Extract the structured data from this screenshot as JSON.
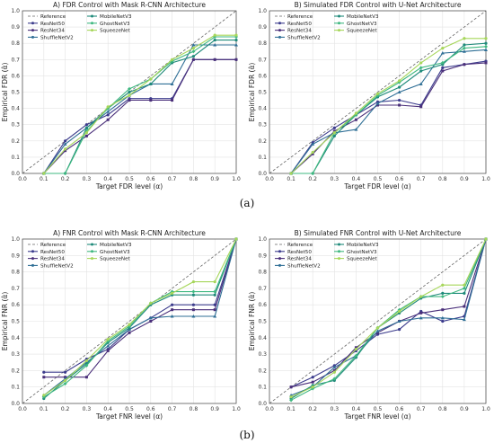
{
  "captions": [
    "(a)",
    "(b)"
  ],
  "colors": {
    "ResNet50": "#3b3b8c",
    "ResNet34": "#4a2f7a",
    "ShuffleNetV2": "#2f6f96",
    "MobileNetV3": "#1f8a7a",
    "GhostNetV3": "#3fb880",
    "SqueezeNet": "#a6d65a",
    "Reference": "#666666"
  },
  "chart_data": [
    {
      "type": "line",
      "title": "A) FDR Control with Mask R-CNN Architecture",
      "xlabel": "Target FDR level (α)",
      "ylabel": "Empirical FDR (α̂)",
      "xlim": [
        0,
        1
      ],
      "ylim": [
        0,
        1
      ],
      "ticks": [
        "0.0",
        "0.1",
        "0.2",
        "0.3",
        "0.4",
        "0.5",
        "0.6",
        "0.7",
        "0.8",
        "0.9",
        "1.0"
      ],
      "legend": [
        "Reference",
        "ResNet50",
        "ResNet34",
        "ShuffleNetV2",
        "MobileNetV3",
        "GhostNetV3",
        "SqueezeNet"
      ],
      "x": [
        0.1,
        0.2,
        0.3,
        0.4,
        0.5,
        0.6,
        0.7,
        0.8,
        0.9,
        1.0
      ],
      "series": [
        {
          "name": "ResNet50",
          "values": [
            0.0,
            0.2,
            0.3,
            0.36,
            0.46,
            0.46,
            0.46,
            0.7,
            0.7,
            0.7
          ]
        },
        {
          "name": "ResNet34",
          "values": [
            0.0,
            0.14,
            0.23,
            0.33,
            0.45,
            0.45,
            0.45,
            0.7,
            0.7,
            0.7
          ]
        },
        {
          "name": "ShuffleNetV2",
          "values": [
            0.0,
            0.18,
            0.28,
            0.38,
            0.48,
            0.55,
            0.55,
            0.79,
            0.79,
            0.79
          ]
        },
        {
          "name": "MobileNetV3",
          "values": [
            0.0,
            0.0,
            0.28,
            0.4,
            0.5,
            0.55,
            0.68,
            0.72,
            0.82,
            0.82
          ]
        },
        {
          "name": "GhostNetV3",
          "values": [
            0.0,
            0.0,
            0.26,
            0.4,
            0.52,
            0.58,
            0.69,
            0.75,
            0.84,
            0.84
          ]
        },
        {
          "name": "SqueezeNet",
          "values": [
            0.0,
            0.15,
            0.25,
            0.41,
            0.48,
            0.58,
            0.7,
            0.77,
            0.85,
            0.85
          ]
        }
      ]
    },
    {
      "type": "line",
      "title": "B) Simulated FDR Control with U-Net Architecture",
      "xlabel": "Target FDR level (α)",
      "ylabel": "Empirical FDR (α̂)",
      "xlim": [
        0,
        1
      ],
      "ylim": [
        0,
        1
      ],
      "ticks": [
        "0.0",
        "0.1",
        "0.2",
        "0.3",
        "0.4",
        "0.5",
        "0.6",
        "0.7",
        "0.8",
        "0.9",
        "1.0"
      ],
      "legend": [
        "Reference",
        "ResNet50",
        "ResNet34",
        "ShuffleNetV2",
        "MobileNetV3",
        "GhostNetV3",
        "SqueezeNet"
      ],
      "x": [
        0.1,
        0.2,
        0.3,
        0.4,
        0.5,
        0.6,
        0.7,
        0.8,
        0.9,
        1.0
      ],
      "series": [
        {
          "name": "ResNet50",
          "values": [
            0.0,
            0.19,
            0.28,
            0.36,
            0.44,
            0.45,
            0.42,
            0.65,
            0.67,
            0.69
          ]
        },
        {
          "name": "ResNet34",
          "values": [
            0.0,
            0.12,
            0.26,
            0.33,
            0.42,
            0.42,
            0.41,
            0.63,
            0.67,
            0.68
          ]
        },
        {
          "name": "ShuffleNetV2",
          "values": [
            0.0,
            0.18,
            0.25,
            0.27,
            0.43,
            0.5,
            0.55,
            0.74,
            0.75,
            0.76
          ]
        },
        {
          "name": "MobileNetV3",
          "values": [
            0.0,
            0.0,
            0.23,
            0.36,
            0.47,
            0.53,
            0.63,
            0.67,
            0.79,
            0.8
          ]
        },
        {
          "name": "GhostNetV3",
          "values": [
            0.0,
            0.0,
            0.25,
            0.36,
            0.48,
            0.56,
            0.65,
            0.68,
            0.77,
            0.78
          ]
        },
        {
          "name": "SqueezeNet",
          "values": [
            0.0,
            0.13,
            0.25,
            0.37,
            0.49,
            0.57,
            0.68,
            0.77,
            0.83,
            0.83
          ]
        }
      ]
    },
    {
      "type": "line",
      "title": "A) FNR Control with Mask R-CNN Architecture",
      "xlabel": "Target FNR level (α)",
      "ylabel": "Empirical FNR (α̂)",
      "xlim": [
        0,
        1
      ],
      "ylim": [
        0,
        1
      ],
      "ticks": [
        "0.0",
        "0.1",
        "0.2",
        "0.3",
        "0.4",
        "0.5",
        "0.6",
        "0.7",
        "0.8",
        "0.9",
        "1.0"
      ],
      "legend": [
        "Reference",
        "ResNet50",
        "ResNet34",
        "ShuffleNetV2",
        "MobileNetV3",
        "GhostNetV3",
        "SqueezeNet"
      ],
      "x": [
        0.1,
        0.2,
        0.3,
        0.4,
        0.5,
        0.6,
        0.7,
        0.8,
        0.9,
        1.0
      ],
      "series": [
        {
          "name": "ResNet50",
          "values": [
            0.19,
            0.19,
            0.27,
            0.33,
            0.45,
            0.52,
            0.6,
            0.6,
            0.6,
            1.0
          ]
        },
        {
          "name": "ResNet34",
          "values": [
            0.16,
            0.16,
            0.16,
            0.32,
            0.43,
            0.5,
            0.57,
            0.57,
            0.57,
            1.0
          ]
        },
        {
          "name": "ShuffleNetV2",
          "values": [
            0.05,
            0.15,
            0.25,
            0.35,
            0.45,
            0.52,
            0.53,
            0.53,
            0.53,
            1.0
          ]
        },
        {
          "name": "MobileNetV3",
          "values": [
            0.03,
            0.14,
            0.24,
            0.37,
            0.46,
            0.6,
            0.66,
            0.66,
            0.66,
            1.0
          ]
        },
        {
          "name": "GhostNetV3",
          "values": [
            0.04,
            0.12,
            0.23,
            0.38,
            0.47,
            0.61,
            0.68,
            0.68,
            0.68,
            1.0
          ]
        },
        {
          "name": "SqueezeNet",
          "values": [
            0.05,
            0.14,
            0.26,
            0.39,
            0.48,
            0.61,
            0.67,
            0.74,
            0.74,
            1.0
          ]
        }
      ]
    },
    {
      "type": "line",
      "title": "B) Simulated FNR Control with U-Net Architecture",
      "xlabel": "Target FNR level (α)",
      "ylabel": "Empirical FNR (α̂)",
      "xlim": [
        0,
        1
      ],
      "ylim": [
        0,
        1
      ],
      "ticks": [
        "0.0",
        "0.1",
        "0.2",
        "0.3",
        "0.4",
        "0.5",
        "0.6",
        "0.7",
        "0.8",
        "0.9",
        "1.0"
      ],
      "legend": [
        "Reference",
        "ResNet50",
        "ResNet34",
        "ShuffleNetV2",
        "MobileNetV3",
        "GhostNetV3",
        "SqueezeNet"
      ],
      "x": [
        0.1,
        0.2,
        0.3,
        0.4,
        0.5,
        0.6,
        0.7,
        0.8,
        0.9,
        1.0
      ],
      "series": [
        {
          "name": "ResNet50",
          "values": [
            0.1,
            0.16,
            0.23,
            0.32,
            0.42,
            0.45,
            0.56,
            0.5,
            0.53,
            1.0
          ]
        },
        {
          "name": "ResNet34",
          "values": [
            0.1,
            0.13,
            0.2,
            0.34,
            0.43,
            0.5,
            0.55,
            0.57,
            0.59,
            1.0
          ]
        },
        {
          "name": "ShuffleNetV2",
          "values": [
            0.05,
            0.1,
            0.22,
            0.29,
            0.44,
            0.5,
            0.52,
            0.52,
            0.51,
            1.0
          ]
        },
        {
          "name": "MobileNetV3",
          "values": [
            0.03,
            0.11,
            0.14,
            0.28,
            0.46,
            0.55,
            0.64,
            0.67,
            0.67,
            1.0
          ]
        },
        {
          "name": "GhostNetV3",
          "values": [
            0.02,
            0.09,
            0.15,
            0.29,
            0.46,
            0.57,
            0.65,
            0.65,
            0.7,
            1.0
          ]
        },
        {
          "name": "SqueezeNet",
          "values": [
            0.04,
            0.1,
            0.19,
            0.33,
            0.46,
            0.56,
            0.65,
            0.72,
            0.72,
            1.0
          ]
        }
      ]
    }
  ]
}
